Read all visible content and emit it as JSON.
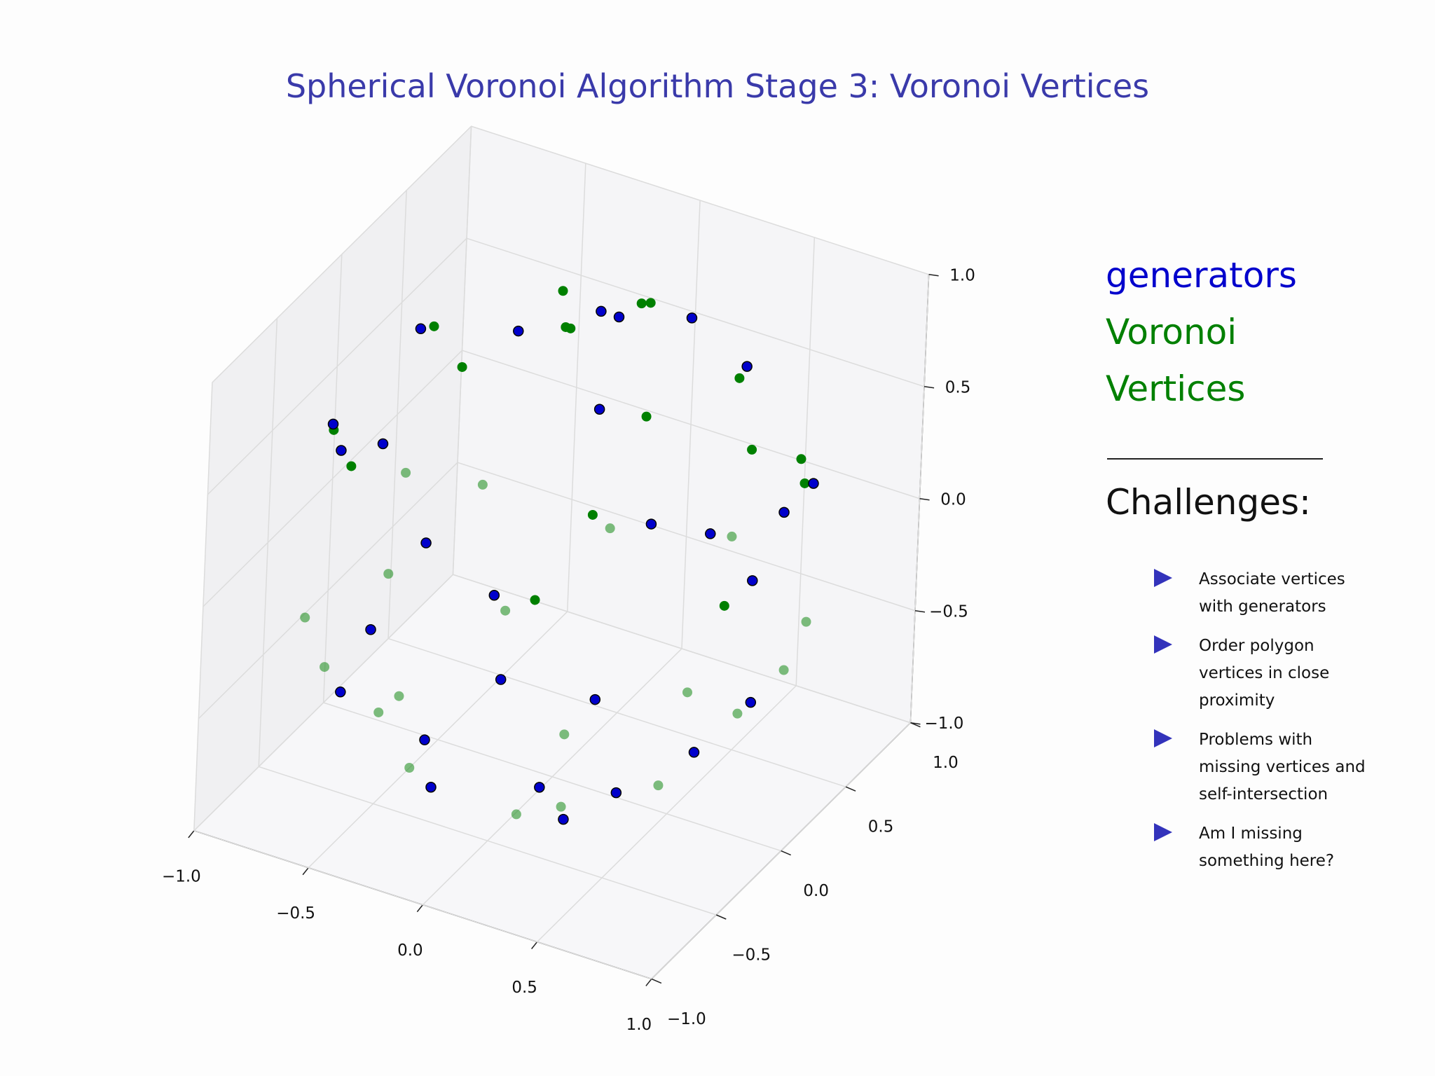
{
  "chart_data": {
    "type": "scatter3d",
    "title": "Spherical Voronoi Algorithm Stage 3: Voronoi Vertices",
    "xlim": [
      -1,
      1
    ],
    "ylim": [
      -1,
      1
    ],
    "zlim": [
      -1,
      1
    ],
    "xticks": [
      {
        "value": -1,
        "label": "−1.0"
      },
      {
        "value": -0.5,
        "label": "−0.5"
      },
      {
        "value": 0,
        "label": "0.0"
      },
      0.5,
      {
        "value": 1,
        "label": "1.0"
      }
    ],
    "yticks": [
      {
        "value": -1,
        "label": "−1.0"
      },
      {
        "value": -0.5,
        "label": "−0.5"
      },
      {
        "value": 0,
        "label": "0.0"
      },
      0.5,
      {
        "value": 1,
        "label": "1.0"
      }
    ],
    "zticks": [
      {
        "value": -1,
        "label": "−1.0"
      },
      {
        "value": -0.5,
        "label": "−0.5"
      },
      {
        "value": 0,
        "label": "0.0"
      },
      0.5,
      {
        "value": 1,
        "label": "1.0"
      }
    ],
    "grid": true,
    "series": [
      {
        "name": "Voronoi Vertices",
        "color": "#008000",
        "x": [
          0.55,
          -0.1,
          0.85,
          -0.6,
          0.35,
          0.7,
          -0.5,
          0.0,
          -0.85,
          0.6,
          -0.35,
          0.45,
          -0.95,
          0.25,
          0.9,
          -0.6,
          0.15,
          -0.45,
          0.6,
          -0.25,
          0.98,
          -0.15,
          0.1,
          -0.75,
          0.5,
          -0.9,
          0.2,
          -0.6,
          0.75,
          -0.3,
          0.3,
          -0.7,
          0.8,
          -0.2,
          0.45,
          -0.8
        ],
        "y": [
          0.35,
          0.75,
          0.35,
          -0.6,
          -0.85,
          -0.45,
          0.5,
          0.0,
          0.2,
          0.78,
          -0.5,
          -0.2,
          -0.1,
          0.9,
          -0.35,
          -0.75,
          -0.2,
          0.8,
          0.35,
          0.85,
          0.0,
          -0.98,
          0.45,
          0.3,
          -0.85,
          0.4,
          -0.65,
          -0.3,
          0.1,
          -0.3,
          0.5,
          0.65,
          0.5,
          0.3,
          -0.6,
          -0.55
        ],
        "z": [
          0.76,
          0.65,
          0.39,
          0.53,
          0.39,
          -0.55,
          -0.71,
          1.0,
          -0.49,
          0.17,
          -0.79,
          0.87,
          0.29,
          -0.36,
          0.26,
          -0.28,
          -0.97,
          0.4,
          -0.72,
          -0.46,
          -0.2,
          -0.13,
          0.89,
          0.59,
          -0.16,
          -0.17,
          -0.73,
          -0.74,
          0.65,
          0.9,
          -0.81,
          -0.3,
          -0.33,
          0.93,
          0.66,
          -0.24
        ]
      },
      {
        "name": "generators",
        "color": "#0000cc",
        "x": [
          0.5,
          -0.3,
          0.9,
          -0.7,
          0.2,
          0.6,
          -0.4,
          0.1,
          -0.8,
          0.7,
          -0.2,
          0.3,
          -0.9,
          0.4,
          0.8,
          -0.5,
          0.0,
          -0.6,
          0.5,
          -0.1,
          0.95,
          -0.3,
          0.2,
          -0.7,
          0.6,
          -0.95,
          0.35,
          -0.45
        ],
        "y": [
          0.5,
          0.8,
          0.1,
          -0.5,
          -0.9,
          -0.6,
          0.3,
          0.2,
          0.4,
          0.7,
          -0.6,
          -0.3,
          -0.2,
          0.8,
          -0.3,
          -0.8,
          -0.1,
          0.7,
          0.2,
          0.9,
          -0.2,
          -0.95,
          0.6,
          0.1,
          -0.8,
          0.3,
          -0.55,
          -0.2
        ],
        "z": [
          0.71,
          0.52,
          0.42,
          0.51,
          0.39,
          -0.53,
          -0.87,
          0.97,
          -0.45,
          0.14,
          -0.77,
          0.91,
          0.39,
          -0.45,
          0.52,
          -0.33,
          -0.99,
          0.39,
          -0.84,
          -0.42,
          -0.24,
          0.1,
          0.77,
          0.71,
          0.0,
          0.0,
          -0.76,
          -0.87
        ]
      }
    ]
  },
  "sidebar": {
    "heading": "Challenges:",
    "items": [
      "Associate vertices with generators",
      "Order polygon vertices in close proximity",
      "Problems with missing vertices and self-intersection",
      "Am I missing something here?"
    ]
  }
}
